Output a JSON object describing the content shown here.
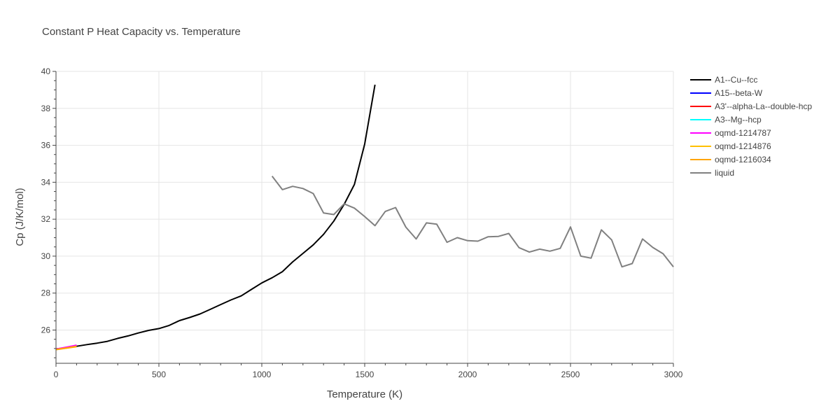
{
  "chart_data": {
    "type": "line",
    "title": "Constant P Heat Capacity vs. Temperature",
    "xlabel": "Temperature (K)",
    "ylabel": "Cp (J/K/mol)",
    "xlim": [
      0,
      3000
    ],
    "ylim": [
      24.2,
      40
    ],
    "xticks": [
      0,
      500,
      1000,
      1500,
      2000,
      2500,
      3000
    ],
    "yticks": [
      26,
      28,
      30,
      32,
      34,
      36,
      38,
      40
    ],
    "grid": true,
    "legend_position": "right",
    "series": [
      {
        "name": "A1--Cu--fcc",
        "color": "#000000",
        "x": [
          0,
          50,
          100,
          150,
          200,
          250,
          300,
          350,
          400,
          450,
          500,
          550,
          600,
          650,
          700,
          750,
          800,
          850,
          900,
          950,
          1000,
          1050,
          1100,
          1150,
          1200,
          1250,
          1300,
          1350,
          1400,
          1450,
          1500,
          1550
        ],
        "y": [
          24.98,
          25.03,
          25.12,
          25.21,
          25.29,
          25.39,
          25.55,
          25.68,
          25.84,
          25.98,
          26.08,
          26.25,
          26.51,
          26.68,
          26.87,
          27.12,
          27.38,
          27.63,
          27.85,
          28.2,
          28.55,
          28.83,
          29.16,
          29.69,
          30.15,
          30.61,
          31.18,
          31.9,
          32.8,
          33.88,
          36.07,
          39.28
        ]
      },
      {
        "name": "A15--beta-W",
        "color": "#0000ff",
        "x": [
          0,
          50,
          100
        ],
        "y": [
          24.96,
          25.04,
          25.14
        ]
      },
      {
        "name": "A3'--alpha-La--double-hcp",
        "color": "#ff0000",
        "x": [
          0,
          50,
          100
        ],
        "y": [
          24.97,
          25.06,
          25.17
        ]
      },
      {
        "name": "A3--Mg--hcp",
        "color": "#00ffff",
        "x": [
          0,
          50,
          100
        ],
        "y": [
          24.96,
          25.05,
          25.15
        ]
      },
      {
        "name": "oqmd-1214787",
        "color": "#ff00ff",
        "x": [
          0,
          50,
          100
        ],
        "y": [
          24.97,
          25.07,
          25.18
        ]
      },
      {
        "name": "oqmd-1214876",
        "color": "#ffc000",
        "x": [
          0,
          50,
          100
        ],
        "y": [
          24.95,
          25.03,
          25.12
        ]
      },
      {
        "name": "oqmd-1216034",
        "color": "#ffa500",
        "x": [
          0,
          50,
          100
        ],
        "y": [
          24.94,
          25.02,
          25.1
        ]
      },
      {
        "name": "liquid",
        "color": "#808080",
        "x": [
          1050,
          1100,
          1150,
          1200,
          1250,
          1300,
          1350,
          1400,
          1450,
          1500,
          1550,
          1600,
          1650,
          1700,
          1750,
          1800,
          1850,
          1900,
          1950,
          2000,
          2050,
          2100,
          2150,
          2200,
          2250,
          2300,
          2350,
          2400,
          2450,
          2500,
          2550,
          2600,
          2650,
          2700,
          2750,
          2800,
          2850,
          2900,
          2950,
          3000
        ],
        "y": [
          34.33,
          33.6,
          33.78,
          33.66,
          33.39,
          32.34,
          32.25,
          32.83,
          32.6,
          32.14,
          31.65,
          32.42,
          32.63,
          31.57,
          30.93,
          31.8,
          31.73,
          30.75,
          31.0,
          30.84,
          30.81,
          31.05,
          31.07,
          31.23,
          30.46,
          30.22,
          30.38,
          30.27,
          30.42,
          31.58,
          30.0,
          29.89,
          31.42,
          30.88,
          29.42,
          29.6,
          30.93,
          30.47,
          30.13,
          29.42
        ]
      }
    ]
  }
}
